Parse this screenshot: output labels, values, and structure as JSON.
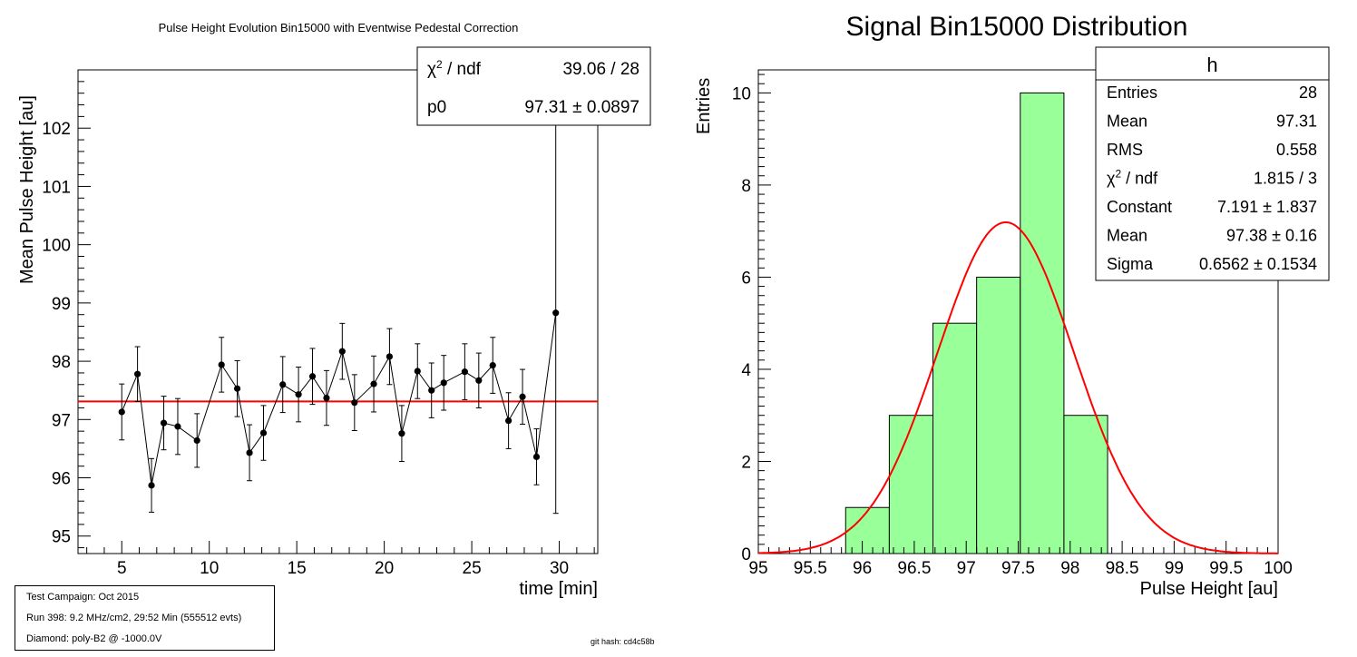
{
  "chart_data": [
    {
      "type": "scatter",
      "title": "Pulse Height Evolution Bin15000 with Eventwise Pedestal Correction",
      "xlabel": "time [min]",
      "ylabel": "Mean Pulse Height [au]",
      "xlim": [
        2.5,
        32.2
      ],
      "ylim": [
        94.7,
        103.0
      ],
      "xticks": [
        "5",
        "10",
        "15",
        "20",
        "25",
        "30"
      ],
      "xtick_values": [
        5,
        10,
        15,
        20,
        25,
        30
      ],
      "yticks": [
        "95",
        "96",
        "97",
        "98",
        "99",
        "100",
        "101",
        "102"
      ],
      "ytick_values": [
        95,
        96,
        97,
        98,
        99,
        100,
        101,
        102
      ],
      "points": [
        {
          "x": 5.0,
          "y": 97.13,
          "err": 0.48
        },
        {
          "x": 5.9,
          "y": 97.78,
          "err": 0.47
        },
        {
          "x": 6.7,
          "y": 95.87,
          "err": 0.46
        },
        {
          "x": 7.4,
          "y": 96.94,
          "err": 0.46
        },
        {
          "x": 8.2,
          "y": 96.88,
          "err": 0.48
        },
        {
          "x": 9.3,
          "y": 96.64,
          "err": 0.46
        },
        {
          "x": 10.7,
          "y": 97.94,
          "err": 0.47
        },
        {
          "x": 11.6,
          "y": 97.53,
          "err": 0.48
        },
        {
          "x": 12.3,
          "y": 96.43,
          "err": 0.48
        },
        {
          "x": 13.1,
          "y": 96.77,
          "err": 0.47
        },
        {
          "x": 14.2,
          "y": 97.6,
          "err": 0.48
        },
        {
          "x": 15.1,
          "y": 97.43,
          "err": 0.47
        },
        {
          "x": 15.9,
          "y": 97.74,
          "err": 0.48
        },
        {
          "x": 16.7,
          "y": 97.37,
          "err": 0.47
        },
        {
          "x": 17.6,
          "y": 98.17,
          "err": 0.48
        },
        {
          "x": 18.3,
          "y": 97.29,
          "err": 0.48
        },
        {
          "x": 19.4,
          "y": 97.61,
          "err": 0.48
        },
        {
          "x": 20.3,
          "y": 98.08,
          "err": 0.48
        },
        {
          "x": 21.0,
          "y": 96.76,
          "err": 0.48
        },
        {
          "x": 21.9,
          "y": 97.83,
          "err": 0.47
        },
        {
          "x": 22.7,
          "y": 97.5,
          "err": 0.47
        },
        {
          "x": 23.4,
          "y": 97.63,
          "err": 0.47
        },
        {
          "x": 24.6,
          "y": 97.82,
          "err": 0.48
        },
        {
          "x": 25.4,
          "y": 97.67,
          "err": 0.47
        },
        {
          "x": 26.2,
          "y": 97.93,
          "err": 0.48
        },
        {
          "x": 27.1,
          "y": 96.98,
          "err": 0.48
        },
        {
          "x": 27.9,
          "y": 97.39,
          "err": 0.47
        },
        {
          "x": 28.7,
          "y": 96.36,
          "err": 0.48
        },
        {
          "x": 29.8,
          "y": 98.83,
          "err": 3.44
        }
      ],
      "fit": {
        "y": 97.31,
        "color": "#ff0000"
      },
      "stats": {
        "rows": [
          {
            "label": "χ² / ndf",
            "value": "39.06 / 28"
          },
          {
            "label": "p0",
            "value": "97.31 ± 0.0897"
          }
        ]
      }
    },
    {
      "type": "bar",
      "title": "Signal Bin15000 Distribution",
      "xlabel": "Pulse Height [au]",
      "ylabel": "Entries",
      "xlim": [
        95,
        100
      ],
      "ylim": [
        0,
        10.5
      ],
      "xticks": [
        "95",
        "95.5",
        "96",
        "96.5",
        "97",
        "97.5",
        "98",
        "98.5",
        "99",
        "99.5",
        "100"
      ],
      "xtick_values": [
        95,
        95.5,
        96,
        96.5,
        97,
        97.5,
        98,
        98.5,
        99,
        99.5,
        100
      ],
      "yticks": [
        "0",
        "2",
        "4",
        "6",
        "8",
        "10"
      ],
      "ytick_values": [
        0,
        2,
        4,
        6,
        8,
        10
      ],
      "bins": [
        {
          "low": 95.84,
          "high": 96.26,
          "count": 1
        },
        {
          "low": 96.26,
          "high": 96.68,
          "count": 3
        },
        {
          "low": 96.68,
          "high": 97.1,
          "count": 5
        },
        {
          "low": 97.1,
          "high": 97.52,
          "count": 6
        },
        {
          "low": 97.52,
          "high": 97.94,
          "count": 10
        },
        {
          "low": 97.94,
          "high": 98.36,
          "count": 3
        }
      ],
      "fill_color": "#99ff99",
      "fit": {
        "type": "gaussian",
        "constant": 7.191,
        "mean": 97.38,
        "sigma": 0.6562,
        "color": "#ff0000"
      },
      "stats": {
        "name": "h",
        "rows": [
          {
            "label": "Entries",
            "value": "28"
          },
          {
            "label": "Mean",
            "value": "97.31"
          },
          {
            "label": "RMS",
            "value": "0.558"
          },
          {
            "label": "χ² / ndf",
            "value": "1.815 / 3"
          },
          {
            "label": "Constant",
            "value": "7.191 ± 1.837"
          },
          {
            "label": "Mean",
            "value": "97.38 ± 0.16"
          },
          {
            "label": "Sigma",
            "value": "0.6562 ± 0.1534"
          }
        ]
      }
    }
  ],
  "info_box": {
    "campaign": "Test Campaign: Oct 2015",
    "run": "Run 398: 9.2 MHz/cm2, 29:52 Min (555512 evts)",
    "diamond": "Diamond: poly-B2 @ -1000.0V"
  },
  "git_hash": "git hash: cd4c58b"
}
